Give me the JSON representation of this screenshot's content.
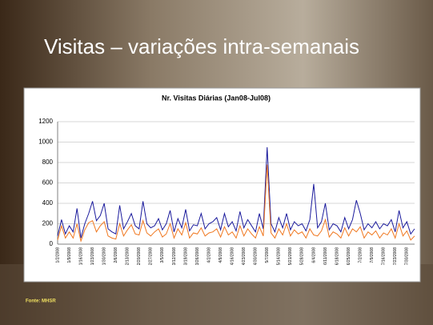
{
  "slide": {
    "title": "Visitas – variações intra-semanais",
    "source": "Fonte: MHSR"
  },
  "chart_data": {
    "type": "line",
    "title": "Nr. Visitas Diárias (Jan08-Jul08)",
    "categories": [
      "1/2/2008",
      null,
      null,
      "1/9/2008",
      null,
      null,
      "1/16/2008",
      null,
      null,
      "1/23/2008",
      null,
      null,
      "1/30/2008",
      null,
      null,
      "2/6/2008",
      null,
      null,
      "2/13/2008",
      null,
      null,
      "2/20/2008",
      null,
      null,
      "2/27/2008",
      null,
      null,
      "3/5/2008",
      null,
      null,
      "3/12/2008",
      null,
      null,
      "3/19/2008",
      null,
      null,
      "3/26/2008",
      null,
      null,
      "4/2/2008",
      null,
      null,
      "4/9/2008",
      null,
      null,
      "4/16/2008",
      null,
      null,
      "4/23/2008",
      null,
      null,
      "4/30/2008",
      null,
      null,
      "5/7/2008",
      null,
      null,
      "5/14/2008",
      null,
      null,
      "5/21/2008",
      null,
      null,
      "5/28/2008",
      null,
      null,
      "6/4/2008",
      null,
      null,
      "6/11/2008",
      null,
      null,
      "6/18/2008",
      null,
      null,
      "6/25/2008",
      null,
      null,
      "7/2/2008",
      null,
      null,
      "7/9/2008",
      null,
      null,
      "7/16/2008",
      null,
      null,
      "7/23/2008",
      null,
      null,
      "7/30/2008",
      null,
      null
    ],
    "series": [
      {
        "color": "#1a1a9c",
        "values": [
          80,
          240,
          100,
          180,
          120,
          350,
          60,
          200,
          300,
          420,
          230,
          280,
          400,
          150,
          120,
          100,
          380,
          150,
          220,
          300,
          180,
          150,
          420,
          200,
          160,
          180,
          250,
          140,
          200,
          330,
          120,
          250,
          160,
          340,
          130,
          190,
          180,
          300,
          150,
          200,
          220,
          260,
          140,
          300,
          170,
          220,
          130,
          320,
          160,
          240,
          180,
          120,
          300,
          150,
          950,
          200,
          120,
          260,
          160,
          300,
          140,
          220,
          180,
          200,
          130,
          240,
          590,
          160,
          220,
          400,
          140,
          200,
          180,
          120,
          260,
          150,
          240,
          430,
          300,
          140,
          200,
          160,
          220,
          150,
          200,
          180,
          240,
          120,
          330,
          160,
          220,
          100,
          150
        ]
      },
      {
        "color": "#f07820",
        "values": [
          40,
          180,
          60,
          120,
          60,
          200,
          30,
          140,
          210,
          230,
          120,
          180,
          220,
          80,
          60,
          50,
          200,
          80,
          140,
          190,
          100,
          90,
          230,
          110,
          80,
          120,
          150,
          70,
          100,
          200,
          60,
          150,
          90,
          210,
          60,
          110,
          100,
          160,
          80,
          110,
          120,
          150,
          70,
          170,
          90,
          120,
          60,
          180,
          80,
          150,
          100,
          60,
          170,
          80,
          780,
          110,
          60,
          150,
          90,
          200,
          80,
          140,
          100,
          120,
          60,
          150,
          90,
          80,
          130,
          240,
          70,
          120,
          100,
          60,
          160,
          80,
          150,
          120,
          170,
          60,
          120,
          90,
          130,
          60,
          110,
          90,
          150,
          60,
          200,
          80,
          130,
          40,
          80
        ]
      }
    ],
    "ylim": [
      0,
      1200
    ],
    "yticks": [
      0,
      200,
      400,
      600,
      800,
      1000,
      1200
    ],
    "grid": true
  }
}
